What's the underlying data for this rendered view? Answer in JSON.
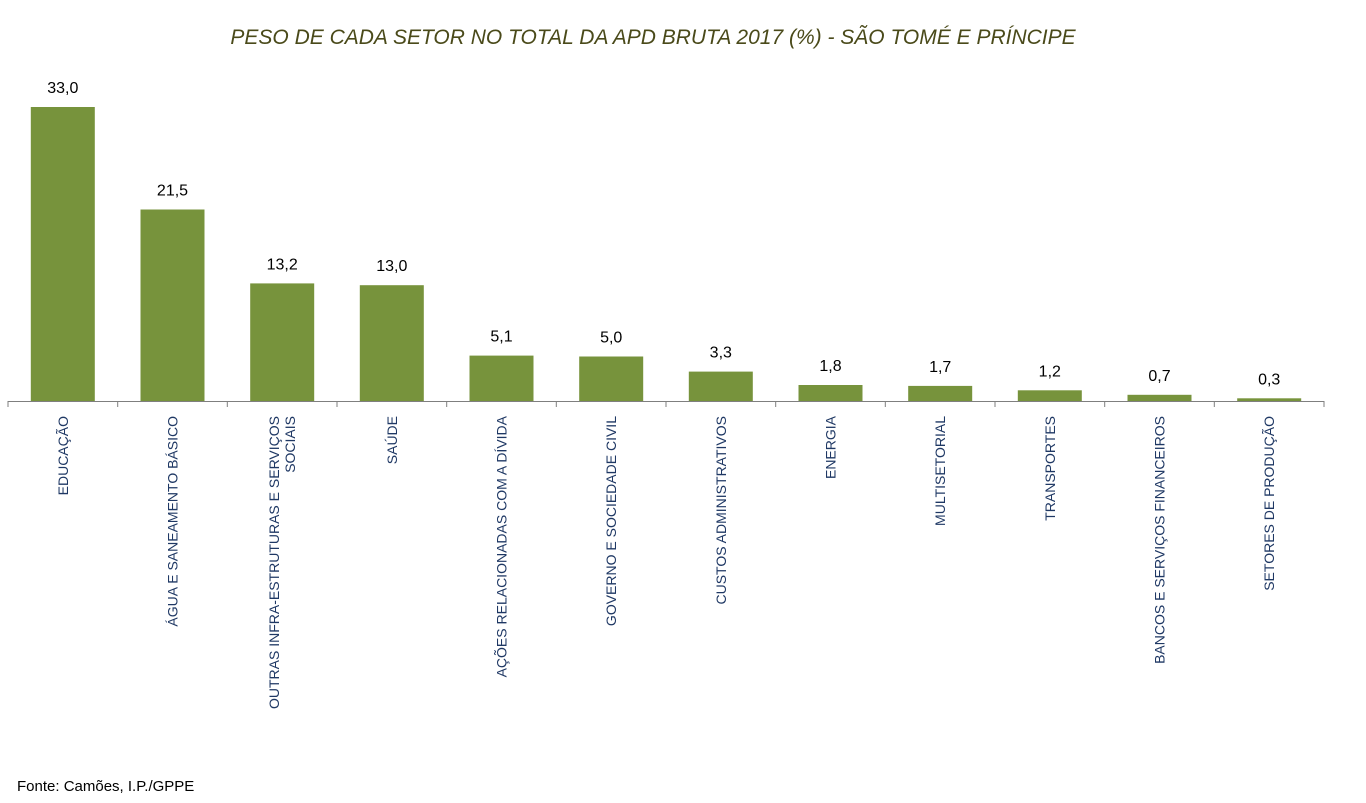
{
  "chart_data": {
    "type": "bar",
    "title": "PESO DE CADA SETOR NO TOTAL DA APD BRUTA 2017 (%) - SÃO TOMÉ E PRÍNCIPE",
    "categories": [
      "EDUCAÇÃO",
      "ÁGUA E SANEAMENTO BÁSICO",
      "OUTRAS INFRA-ESTRUTURAS E SERVIÇOS SOCIAIS",
      "SAÚDE",
      "AÇÕES RELACIONADAS COM A DÍVIDA",
      "GOVERNO E SOCIEDADE CIVIL",
      "CUSTOS ADMINISTRATIVOS",
      "ENERGIA",
      "MULTISETORIAL",
      "TRANSPORTES",
      "BANCOS E SERVIÇOS FINANCEIROS",
      "SETORES DE PRODUÇÃO"
    ],
    "category_lines": [
      [
        "EDUCAÇÃO"
      ],
      [
        "ÁGUA E SANEAMENTO BÁSICO"
      ],
      [
        "OUTRAS INFRA-ESTRUTURAS E SERVIÇOS",
        "SOCIAIS"
      ],
      [
        "SAÚDE"
      ],
      [
        "AÇÕES RELACIONADAS COM A DÍVIDA"
      ],
      [
        "GOVERNO E SOCIEDADE CIVIL"
      ],
      [
        "CUSTOS ADMINISTRATIVOS"
      ],
      [
        "ENERGIA"
      ],
      [
        "MULTISETORIAL"
      ],
      [
        "TRANSPORTES"
      ],
      [
        "BANCOS E SERVIÇOS FINANCEIROS"
      ],
      [
        "SETORES DE PRODUÇÃO"
      ]
    ],
    "values": [
      33.0,
      21.5,
      13.2,
      13.0,
      5.1,
      5.0,
      3.3,
      1.8,
      1.7,
      1.2,
      0.7,
      0.3
    ],
    "value_labels": [
      "33,0",
      "21,5",
      "13,2",
      "13,0",
      "5,1",
      "5,0",
      "3,3",
      "1,8",
      "1,7",
      "1,2",
      "0,7",
      "0,3"
    ],
    "ylim": [
      0,
      33.0
    ],
    "grid": false,
    "legend": "none",
    "colors": {
      "bar": "#77933c",
      "title": "#4a4a1a",
      "category_label": "#1f3864",
      "axis": "#7f7f7f",
      "value_label": "#000000"
    }
  },
  "source": "Fonte: Camões, I.P./GPPE"
}
